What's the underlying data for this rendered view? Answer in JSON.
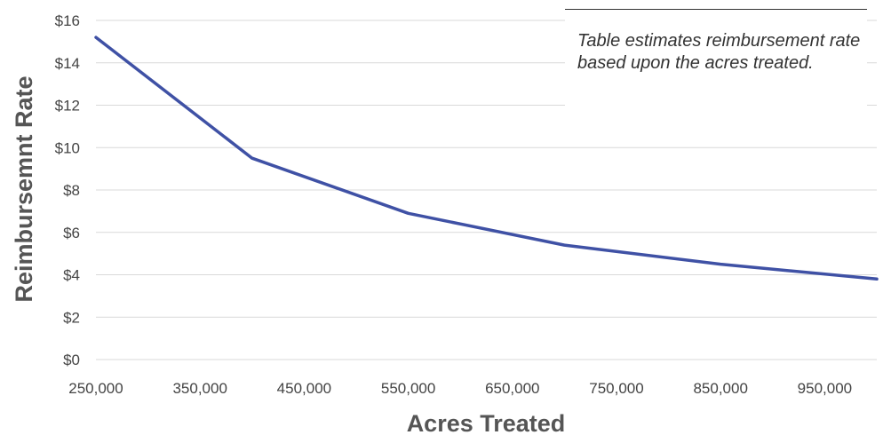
{
  "chart_data": {
    "type": "line",
    "xlabel": "Acres Treated",
    "ylabel": "Reimbursemnt Rate",
    "xlim": [
      250000,
      1000000
    ],
    "ylim": [
      0,
      16
    ],
    "x_ticks": [
      "250,000",
      "350,000",
      "450,000",
      "550,000",
      "650,000",
      "750,000",
      "850,000",
      "950,000"
    ],
    "x_tick_values": [
      250000,
      350000,
      450000,
      550000,
      650000,
      750000,
      850000,
      950000
    ],
    "y_ticks": [
      "$0",
      "$2",
      "$4",
      "$6",
      "$8",
      "$10",
      "$12",
      "$14",
      "$16"
    ],
    "y_tick_values": [
      0,
      2,
      4,
      6,
      8,
      10,
      12,
      14,
      16
    ],
    "grid": "horizontal",
    "series": [
      {
        "x": [
          250000,
          400000,
          550000,
          700000,
          850000,
          1000000
        ],
        "y": [
          15.2,
          9.5,
          6.9,
          5.4,
          4.5,
          3.8
        ],
        "color": "#3f51a5"
      }
    ],
    "annotation": "Table estimates reimbursement rate based upon the acres treated."
  }
}
